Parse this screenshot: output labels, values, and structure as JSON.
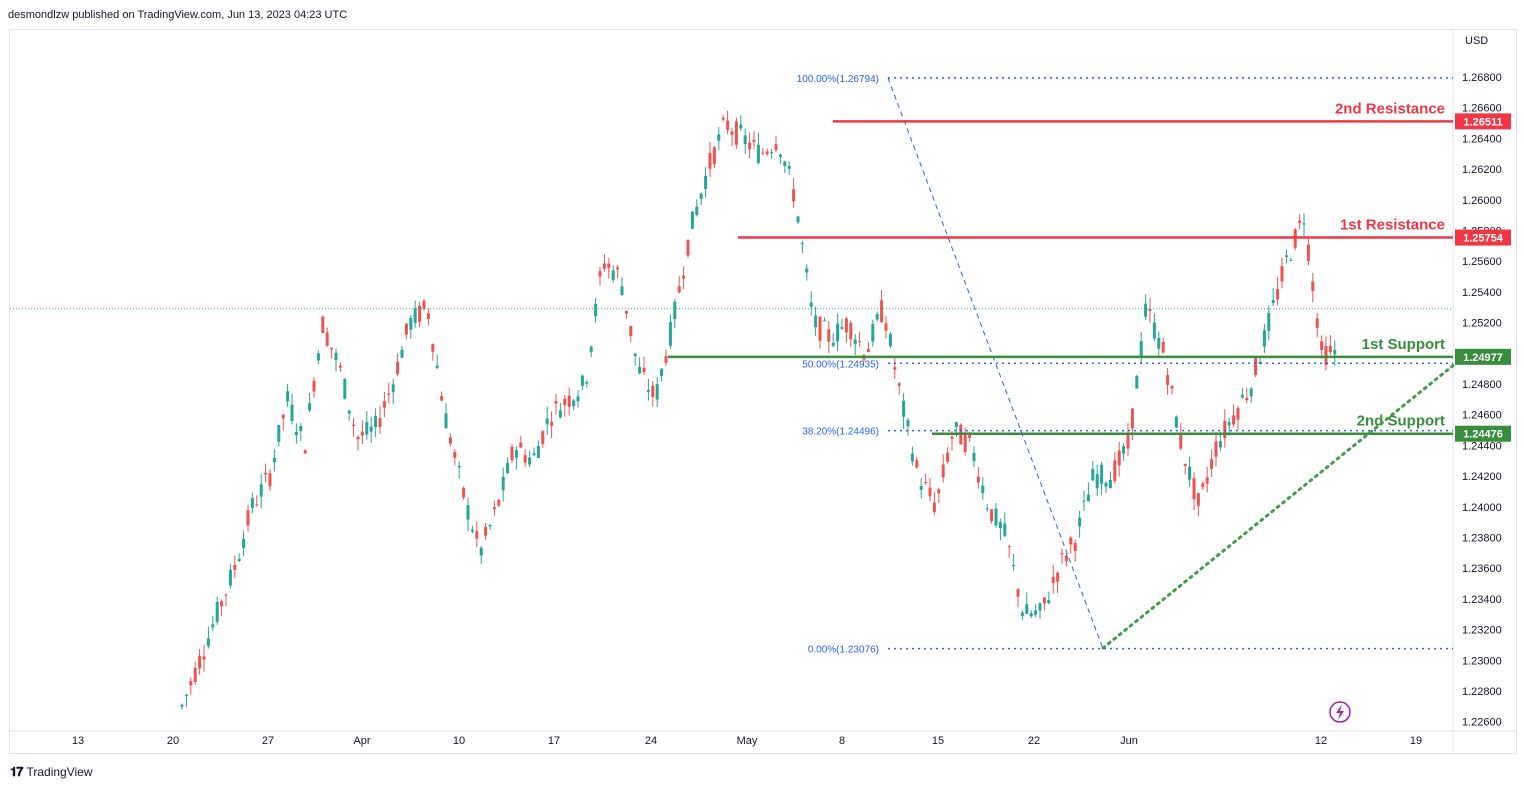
{
  "header": {
    "published": "desmondlzw published on TradingView.com, Jun 13, 2023 04:23 UTC"
  },
  "footer": {
    "brand": "TradingView",
    "logo_icon": "tradingview-logo-icon"
  },
  "colors": {
    "up": "#26a69a",
    "down": "#ef5350",
    "resistance": "#f23645",
    "support": "#388e3c",
    "fib": "#2962ff",
    "trend": "#43a047"
  },
  "chart_data": {
    "type": "candlestick",
    "currency": "USD",
    "y_axis": {
      "ylim": [
        1.2258,
        1.2692
      ],
      "ticks": [
        "1.26800",
        "1.26600",
        "1.26400",
        "1.26200",
        "1.26000",
        "1.25800",
        "1.25600",
        "1.25400",
        "1.25200",
        "1.25000",
        "1.24800",
        "1.24600",
        "1.24400",
        "1.24200",
        "1.24000",
        "1.23800",
        "1.23600",
        "1.23400",
        "1.23200",
        "1.23000",
        "1.22800",
        "1.22600"
      ]
    },
    "x_axis": {
      "labels": [
        "13",
        "20",
        "27",
        "Apr",
        "10",
        "17",
        "24",
        "May",
        "8",
        "15",
        "22",
        "Jun",
        "12",
        "19"
      ]
    },
    "levels": [
      {
        "name": "2nd Resistance",
        "value": "1.26511",
        "kind": "resistance"
      },
      {
        "name": "1st Resistance",
        "value": "1.25754",
        "kind": "resistance"
      },
      {
        "name": "1st Support",
        "value": "1.24977",
        "kind": "support"
      },
      {
        "name": "2nd Support",
        "value": "1.24476",
        "kind": "support"
      }
    ],
    "fibonacci": [
      {
        "label": "100.00%(1.26794)",
        "value": 1.26794
      },
      {
        "label": "50.00%(1.24935)",
        "value": 1.24935
      },
      {
        "label": "38.20%(1.24496)",
        "value": 1.24496
      },
      {
        "label": "0.00%(1.23076)",
        "value": 1.23076
      }
    ],
    "last_price": 1.2529,
    "trendline": {
      "from": {
        "date": "May 26",
        "price": 1.2308
      },
      "to": {
        "date": "Jun 15",
        "price": 1.2492
      }
    },
    "price_path": [
      [
        1.227,
        1.228
      ],
      [
        1.23,
        1.229
      ],
      [
        1.233,
        1.232
      ],
      [
        1.236,
        1.234
      ],
      [
        1.24,
        1.237
      ],
      [
        1.242,
        1.24
      ],
      [
        1.247,
        1.245
      ],
      [
        1.244,
        1.242
      ],
      [
        1.252,
        1.249
      ],
      [
        1.249,
        1.247
      ],
      [
        1.2445,
        1.243
      ],
      [
        1.245,
        1.242
      ],
      [
        1.248,
        1.2455
      ],
      [
        1.252,
        1.25
      ],
      [
        1.253,
        1.251
      ],
      [
        1.246,
        1.242
      ],
      [
        1.241,
        1.238
      ],
      [
        1.237,
        1.235
      ],
      [
        1.24,
        1.243
      ],
      [
        1.244,
        1.242
      ],
      [
        1.243,
        1.241
      ],
      [
        1.246,
        1.244
      ],
      [
        1.247,
        1.25
      ],
      [
        1.248,
        1.25
      ],
      [
        1.256,
        1.257
      ],
      [
        1.255,
        1.251
      ],
      [
        1.249,
        1.25
      ],
      [
        1.247,
        1.246
      ],
      [
        1.252,
        1.256
      ],
      [
        1.258,
        1.26
      ],
      [
        1.262,
        1.264
      ],
      [
        1.265,
        1.264
      ],
      [
        1.264,
        1.262
      ],
      [
        1.263,
        1.266
      ],
      [
        1.264,
        1.26
      ],
      [
        1.26,
        1.257
      ],
      [
        1.252,
        1.25
      ],
      [
        1.251,
        1.253
      ],
      [
        1.252,
        1.245
      ],
      [
        1.25,
        1.251
      ],
      [
        1.253,
        1.25
      ],
      [
        1.247,
        1.245
      ],
      [
        1.242,
        1.24
      ],
      [
        1.24,
        1.244
      ],
      [
        1.245,
        1.248
      ],
      [
        1.244,
        1.24
      ],
      [
        1.24,
        1.238
      ],
      [
        1.238,
        1.234
      ],
      [
        1.233,
        1.231
      ],
      [
        1.233,
        1.236
      ],
      [
        1.236,
        1.238
      ],
      [
        1.238,
        1.24
      ],
      [
        1.242,
        1.244
      ],
      [
        1.242,
        1.236
      ],
      [
        1.244,
        1.254
      ],
      [
        1.253,
        1.25
      ],
      [
        1.25,
        1.245
      ],
      [
        1.244,
        1.24
      ],
      [
        1.24,
        1.243
      ],
      [
        1.244,
        1.244
      ],
      [
        1.246,
        1.248
      ],
      [
        1.248,
        1.25
      ],
      [
        1.252,
        1.256
      ],
      [
        1.256,
        1.258
      ],
      [
        1.259,
        1.254
      ],
      [
        1.25,
        1.249
      ],
      [
        1.25,
        1.252
      ]
    ]
  }
}
